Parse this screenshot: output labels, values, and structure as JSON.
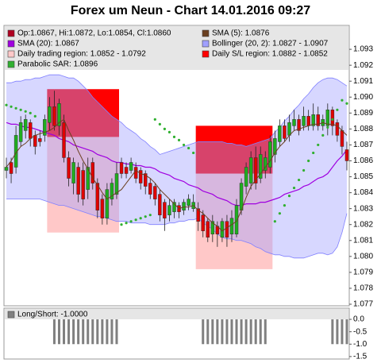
{
  "chart_data": [
    {
      "type": "candlestick",
      "title": "Forex um Neun - Chart 14.01.2016 09:27",
      "ylim": [
        1.0769,
        1.0945
      ],
      "yticks": [
        1.077,
        1.078,
        1.079,
        {
          "value": 1.08,
          "label": "1.080"
        },
        1.081,
        1.082,
        1.083,
        1.084,
        1.085,
        1.086,
        1.087,
        1.088,
        1.089,
        {
          "value": 1.09,
          "label": "1.090"
        },
        1.091,
        1.092,
        1.093
      ],
      "candles": {
        "name": "Op:1.0867, Hi:1.0872, Lo:1.0854, Cl:1.0860",
        "color": "#b00020",
        "up_color": "#1fae1f",
        "down_color": "#e00000",
        "open": [
          1.0854,
          1.0859,
          1.0856,
          1.0872,
          1.0879,
          1.0884,
          1.0876,
          1.0874,
          1.0876,
          1.0884,
          1.0894,
          1.0882,
          1.0884,
          1.0862,
          1.0846,
          1.0856,
          1.0854,
          1.0842,
          1.0859,
          1.0846,
          1.0836,
          1.0824,
          1.0836,
          1.0839,
          1.0859,
          1.0856,
          1.0854,
          1.0856,
          1.0854,
          1.0852,
          1.0846,
          1.0844,
          1.0839,
          1.0834,
          1.0826,
          1.0828,
          1.0832,
          1.0829,
          1.0832,
          1.083,
          1.083,
          1.0826,
          1.0822,
          1.0814,
          1.0819,
          1.0812,
          1.0822,
          1.0814,
          1.0814,
          1.0829,
          1.0844,
          1.0846,
          1.0862,
          1.0849,
          1.0854,
          1.0856,
          1.0864,
          1.0872,
          1.0882,
          1.0876,
          1.0882,
          1.0886,
          1.0882,
          1.0888,
          1.0882,
          1.0889,
          1.0882,
          1.0882,
          1.0892,
          1.0884,
          1.0879,
          1.0867
        ],
        "high": [
          1.0862,
          1.0862,
          1.0882,
          1.0888,
          1.0889,
          1.0886,
          1.0879,
          1.0879,
          1.0889,
          1.09,
          1.0904,
          1.0899,
          1.0889,
          1.0866,
          1.0862,
          1.0859,
          1.0859,
          1.0862,
          1.0862,
          1.0849,
          1.0839,
          1.0846,
          1.0849,
          1.0859,
          1.0862,
          1.0859,
          1.0862,
          1.0859,
          1.0856,
          1.0854,
          1.0849,
          1.0846,
          1.0842,
          1.0836,
          1.0836,
          1.0836,
          1.0834,
          1.0836,
          1.0839,
          1.0839,
          1.0834,
          1.0829,
          1.0824,
          1.0826,
          1.0822,
          1.0824,
          1.0826,
          1.0829,
          1.0836,
          1.0849,
          1.0859,
          1.0866,
          1.0869,
          1.0869,
          1.0866,
          1.0876,
          1.0879,
          1.0886,
          1.0886,
          1.0889,
          1.0892,
          1.0889,
          1.0894,
          1.0892,
          1.0896,
          1.0894,
          1.0889,
          1.0896,
          1.0894,
          1.0886,
          1.0882,
          1.0872
        ],
        "low": [
          1.0849,
          1.0846,
          1.0852,
          1.0869,
          1.0874,
          1.0869,
          1.0864,
          1.0869,
          1.0872,
          1.0879,
          1.0879,
          1.0876,
          1.0859,
          1.0844,
          1.0839,
          1.0834,
          1.0832,
          1.0836,
          1.0842,
          1.0824,
          1.082,
          1.082,
          1.0832,
          1.0836,
          1.0849,
          1.0849,
          1.0852,
          1.0846,
          1.0842,
          1.0839,
          1.0836,
          1.0832,
          1.0822,
          1.0816,
          1.0822,
          1.0824,
          1.0824,
          1.0826,
          1.0829,
          1.0828,
          1.0816,
          1.0812,
          1.0809,
          1.0809,
          1.0806,
          1.0809,
          1.0806,
          1.0809,
          1.0812,
          1.0826,
          1.0839,
          1.0842,
          1.0842,
          1.0846,
          1.0849,
          1.0852,
          1.0859,
          1.0869,
          1.0872,
          1.0872,
          1.0879,
          1.0876,
          1.0879,
          1.0879,
          1.0879,
          1.0879,
          1.0879,
          1.0876,
          1.0876,
          1.0872,
          1.0864,
          1.0854
        ],
        "close": [
          1.0856,
          1.0852,
          1.0876,
          1.0884,
          1.0886,
          1.0874,
          1.0869,
          1.0872,
          1.0886,
          1.0894,
          1.0882,
          1.0896,
          1.0862,
          1.0849,
          1.0859,
          1.0839,
          1.0836,
          1.0856,
          1.0846,
          1.0829,
          1.0824,
          1.0842,
          1.0846,
          1.0852,
          1.0852,
          1.0852,
          1.0859,
          1.0849,
          1.0846,
          1.0844,
          1.0839,
          1.0836,
          1.0826,
          1.0824,
          1.0832,
          1.0834,
          1.0828,
          1.0834,
          1.0836,
          1.0834,
          1.0822,
          1.0816,
          1.0812,
          1.0822,
          1.0814,
          1.0822,
          1.0812,
          1.0824,
          1.0832,
          1.0846,
          1.0856,
          1.0862,
          1.0846,
          1.0864,
          1.0862,
          1.0872,
          1.0874,
          1.0882,
          1.0874,
          1.0884,
          1.0886,
          1.0879,
          1.0888,
          1.0882,
          1.0889,
          1.0882,
          1.0886,
          1.0892,
          1.0882,
          1.0876,
          1.0869,
          1.086
        ]
      },
      "sma5": {
        "name": "SMA (5): 1.0876",
        "color": "#6b4020",
        "values": [
          1.0856,
          1.086,
          1.0865,
          1.0869,
          1.0871,
          1.0874,
          1.0876,
          1.0877,
          1.0878,
          1.0879,
          1.0881,
          1.0884,
          1.0886,
          1.0879,
          1.0873,
          1.0866,
          1.086,
          1.0855,
          1.0849,
          1.0845,
          1.084,
          1.0836,
          1.0838,
          1.084,
          1.0842,
          1.0846,
          1.085,
          1.0854,
          1.0852,
          1.0851,
          1.0849,
          1.0846,
          1.0842,
          1.0839,
          1.0836,
          1.0833,
          1.083,
          1.0831,
          1.0831,
          1.0832,
          1.0829,
          1.0827,
          1.0824,
          1.0821,
          1.0819,
          1.0816,
          1.0818,
          1.082,
          1.0822,
          1.0829,
          1.0837,
          1.0844,
          1.0848,
          1.0852,
          1.0856,
          1.086,
          1.0865,
          1.0869,
          1.0872,
          1.0876,
          1.0879,
          1.088,
          1.0881,
          1.0882,
          1.0883,
          1.0883,
          1.0884,
          1.0883,
          1.0883,
          1.0882,
          1.0879,
          1.0876
        ]
      },
      "sma20": {
        "name": "SMA (20): 1.0867",
        "color": "#a000e0",
        "values": [
          1.0884,
          1.0883,
          1.0883,
          1.0882,
          1.0881,
          1.0881,
          1.088,
          1.0879,
          1.0878,
          1.0877,
          1.0876,
          1.0874,
          1.0873,
          1.0872,
          1.087,
          1.0869,
          1.0868,
          1.0867,
          1.0866,
          1.0864,
          1.0863,
          1.0862,
          1.086,
          1.0859,
          1.0859,
          1.0858,
          1.0858,
          1.0857,
          1.0857,
          1.0856,
          1.0856,
          1.0855,
          1.0853,
          1.0852,
          1.0851,
          1.0849,
          1.0848,
          1.0847,
          1.0845,
          1.0844,
          1.0843,
          1.0841,
          1.084,
          1.0839,
          1.0837,
          1.0836,
          1.0835,
          1.0833,
          1.0832,
          1.0832,
          1.0833,
          1.0833,
          1.0833,
          1.0834,
          1.0834,
          1.0835,
          1.0836,
          1.0837,
          1.0839,
          1.084,
          1.0841,
          1.0842,
          1.0844,
          1.0845,
          1.0847,
          1.0849,
          1.085,
          1.0852,
          1.0856,
          1.086,
          1.0863,
          1.0867
        ]
      },
      "bollinger": {
        "name": "Bollinger (20, 2): 1.0827 - 1.0907",
        "color": "#a0a0ff",
        "upper": [
          1.0909,
          1.0909,
          1.091,
          1.091,
          1.0911,
          1.0911,
          1.0912,
          1.0912,
          1.0913,
          1.0914,
          1.0914,
          1.0914,
          1.0913,
          1.0912,
          1.0912,
          1.091,
          1.0907,
          1.0904,
          1.09,
          1.0897,
          1.0894,
          1.0891,
          1.0888,
          1.0886,
          1.0884,
          1.0881,
          1.0879,
          1.0877,
          1.0874,
          1.0872,
          1.0869,
          1.0867,
          1.0864,
          1.0865,
          1.0866,
          1.0867,
          1.0868,
          1.0869,
          1.087,
          1.0871,
          1.0872,
          1.0872,
          1.0872,
          1.0872,
          1.0872,
          1.0872,
          1.0871,
          1.0871,
          1.087,
          1.087,
          1.0869,
          1.087,
          1.0871,
          1.0872,
          1.0873,
          1.0874,
          1.0878,
          1.0881,
          1.0885,
          1.0888,
          1.0892,
          1.0895,
          1.0899,
          1.0902,
          1.0906,
          1.0909,
          1.0911,
          1.0912,
          1.0912,
          1.0911,
          1.0909,
          1.0907
        ],
        "lower": [
          1.0836,
          1.0836,
          1.0836,
          1.0836,
          1.0836,
          1.0836,
          1.0836,
          1.0836,
          1.0835,
          1.0834,
          1.0833,
          1.0832,
          1.0832,
          1.0831,
          1.083,
          1.0829,
          1.0828,
          1.0827,
          1.0826,
          1.0825,
          1.0825,
          1.0824,
          1.0823,
          1.0822,
          1.0822,
          1.0822,
          1.0821,
          1.0821,
          1.0821,
          1.0821,
          1.082,
          1.082,
          1.082,
          1.082,
          1.0821,
          1.0821,
          1.0822,
          1.0822,
          1.0823,
          1.0823,
          1.0824,
          1.0821,
          1.0819,
          1.0817,
          1.0814,
          1.0812,
          1.0811,
          1.0811,
          1.081,
          1.081,
          1.0809,
          1.0808,
          1.0806,
          1.0805,
          1.0803,
          1.0802,
          1.0801,
          1.0801,
          1.08,
          1.08,
          1.0799,
          1.0799,
          1.0799,
          1.08,
          1.0801,
          1.0802,
          1.0802,
          1.0801,
          1.0802,
          1.0806,
          1.0815,
          1.0827
        ]
      },
      "regions": {
        "trading": {
          "name": "Daily trading region: 1.0852 - 1.0792",
          "color": "#ffc8c8"
        },
        "sl": {
          "name": "Daily S/L region: 1.0882 - 1.0852",
          "color": "#ff0000"
        },
        "days": [
          {
            "start": 9,
            "end": 23,
            "sl": [
              1.0905,
              1.0875
            ],
            "trading": [
              1.0875,
              1.0815
            ]
          },
          {
            "start": 40,
            "end": 55,
            "sl": [
              1.0882,
              1.0852
            ],
            "trading": [
              1.0852,
              1.0792
            ]
          }
        ]
      },
      "sar": {
        "name": "Parabolic SAR: 1.0896",
        "color": "#30b030",
        "values": [
          1.0895,
          1.0894,
          1.0893,
          1.0892,
          1.0891,
          1.089,
          1.0888,
          null,
          null,
          null,
          null,
          null,
          null,
          null,
          null,
          null,
          null,
          null,
          null,
          null,
          null,
          null,
          null,
          null,
          1.082,
          1.0821,
          1.0822,
          1.0823,
          1.0824,
          1.0825,
          1.0826,
          1.0886,
          1.0883,
          1.088,
          1.0878,
          1.0875,
          1.0873,
          1.087,
          1.0868,
          1.0865,
          null,
          null,
          null,
          null,
          null,
          null,
          null,
          null,
          null,
          null,
          null,
          null,
          null,
          null,
          null,
          null,
          1.0822,
          1.0827,
          1.0832,
          1.0838,
          1.0843,
          1.0848,
          1.0854,
          1.086,
          1.0865,
          1.087,
          1.0876,
          1.0881,
          1.0886,
          1.0892,
          1.0898,
          1.0896
        ]
      }
    },
    {
      "type": "bar",
      "ylim": [
        -1.6,
        0.45
      ],
      "yticks": [
        {
          "value": 0,
          "label": "0.0"
        },
        -0.5,
        {
          "value": -1,
          "label": "-1.0"
        },
        -1.5
      ],
      "series": [
        {
          "name": "Long/Short: -1.0000",
          "color": "#808080",
          "values": [
            0,
            0,
            0,
            0,
            0,
            0,
            0,
            0,
            0,
            0,
            -1,
            -1,
            -1,
            -1,
            -1,
            -1,
            -1,
            -1,
            -1,
            -1,
            -1,
            -1,
            -1,
            -1,
            0,
            0,
            0,
            0,
            0,
            0,
            0,
            0,
            0,
            0,
            0,
            0,
            0,
            0,
            0,
            0,
            0,
            -1,
            -1,
            -1,
            -1,
            -1,
            -1,
            -1,
            -1,
            -1,
            -1,
            -1,
            -1,
            -1,
            -1,
            0,
            0,
            0,
            0,
            0,
            0,
            0,
            0,
            0,
            0,
            0,
            0,
            0,
            -1,
            -1,
            -1,
            -1
          ]
        }
      ]
    }
  ]
}
